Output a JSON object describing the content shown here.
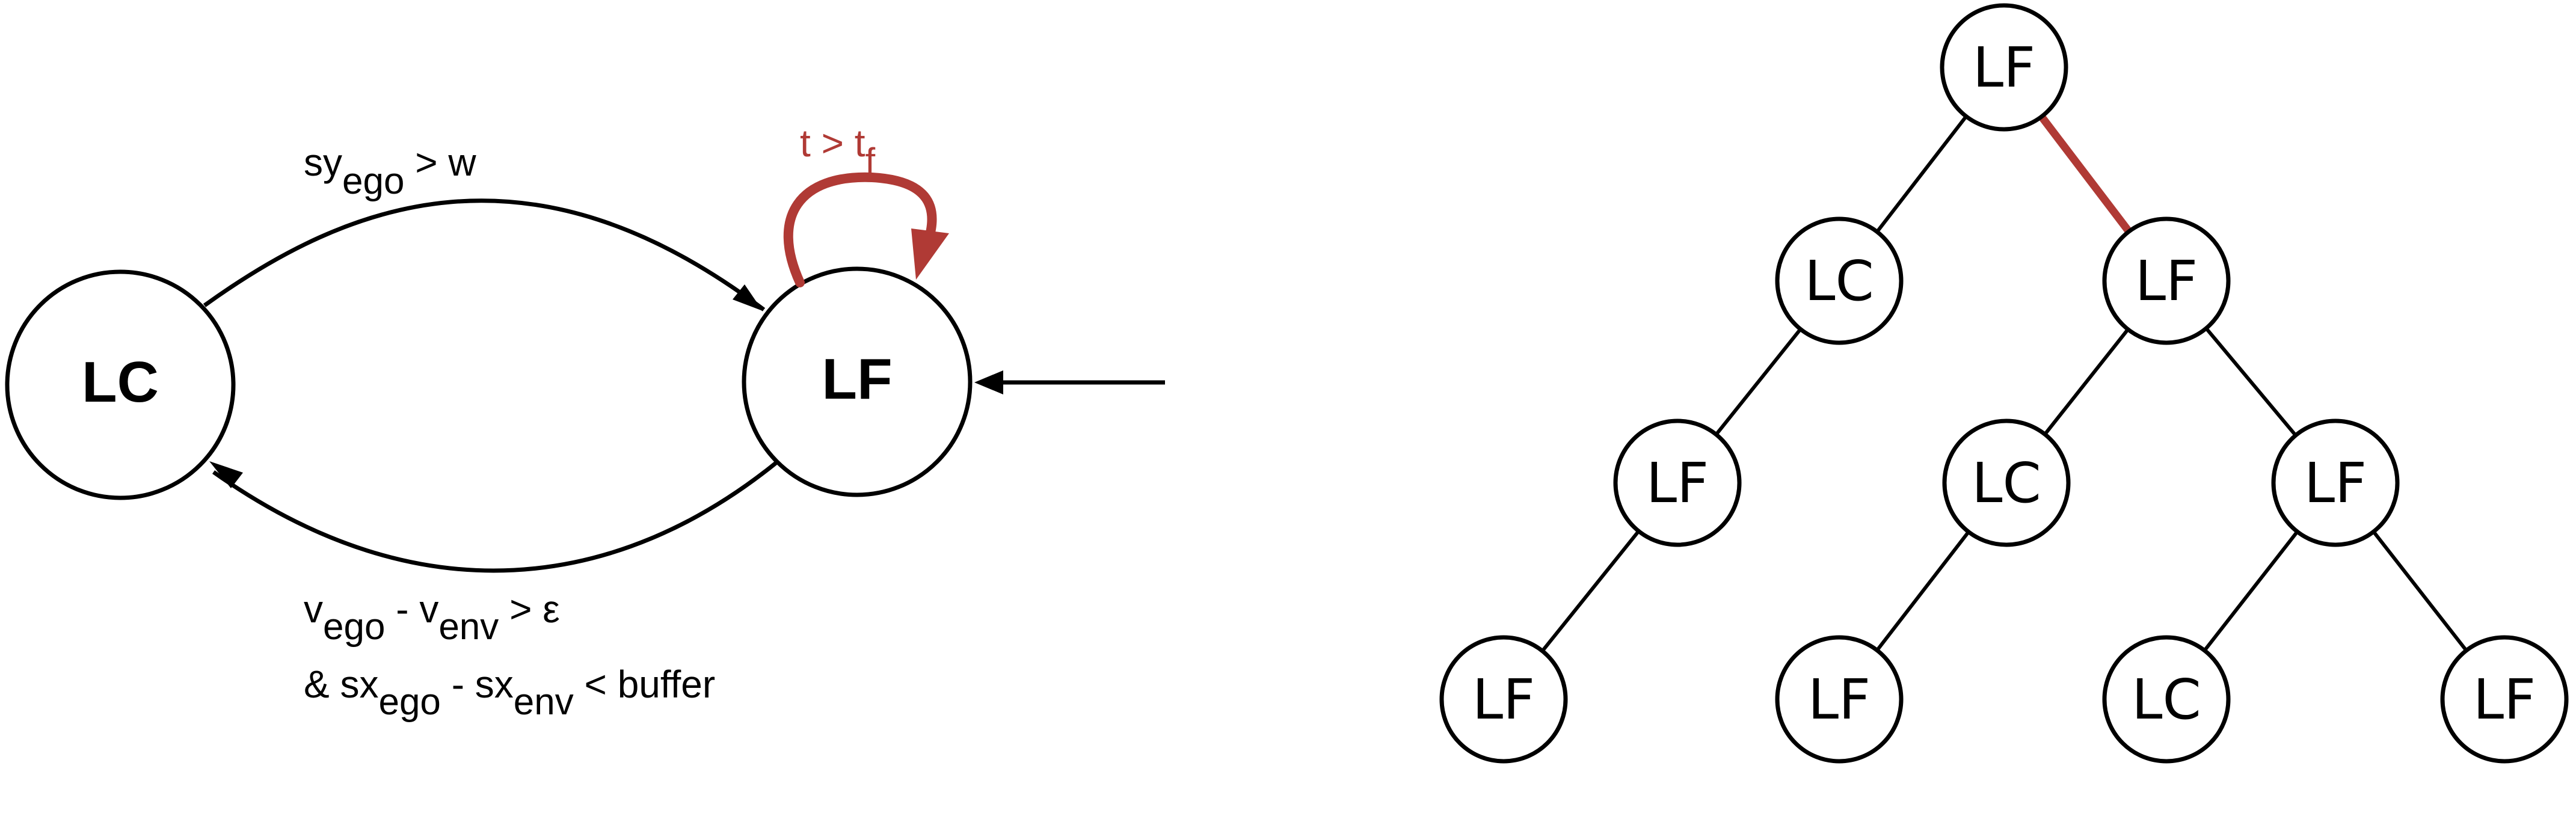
{
  "automaton": {
    "states": [
      {
        "id": "LC",
        "label": "LC"
      },
      {
        "id": "LF",
        "label": "LF"
      }
    ],
    "transitions": {
      "lc_to_lf": {
        "base": "sy",
        "sub": "ego",
        "rest": " > w"
      },
      "self_loop": {
        "base": "t > t",
        "sub": "f"
      },
      "lf_to_lc": {
        "line1": {
          "t1": "v",
          "s1": "ego",
          "t2": " - v",
          "s2": "env",
          "t3": " > ε"
        },
        "line2": {
          "t1": "& sx",
          "s1": "ego",
          "t2": " - sx",
          "s2": "env",
          "t3": " < buffer"
        }
      }
    },
    "colors": {
      "highlight": "#b03a35",
      "stroke": "#000000"
    }
  },
  "tree": {
    "nodes": [
      {
        "id": "n0",
        "label": "LF"
      },
      {
        "id": "n1",
        "label": "LC"
      },
      {
        "id": "n2",
        "label": "LF"
      },
      {
        "id": "n3",
        "label": "LF"
      },
      {
        "id": "n4",
        "label": "LC"
      },
      {
        "id": "n5",
        "label": "LF"
      },
      {
        "id": "n6",
        "label": "LF"
      },
      {
        "id": "n7",
        "label": "LF"
      },
      {
        "id": "n8",
        "label": "LC"
      },
      {
        "id": "n9",
        "label": "LF"
      }
    ],
    "edges": [
      {
        "from": "n0",
        "to": "n1"
      },
      {
        "from": "n0",
        "to": "n2",
        "highlight": true
      },
      {
        "from": "n1",
        "to": "n3"
      },
      {
        "from": "n2",
        "to": "n4"
      },
      {
        "from": "n2",
        "to": "n5"
      },
      {
        "from": "n3",
        "to": "n6"
      },
      {
        "from": "n4",
        "to": "n7"
      },
      {
        "from": "n5",
        "to": "n8"
      },
      {
        "from": "n5",
        "to": "n9"
      }
    ]
  }
}
